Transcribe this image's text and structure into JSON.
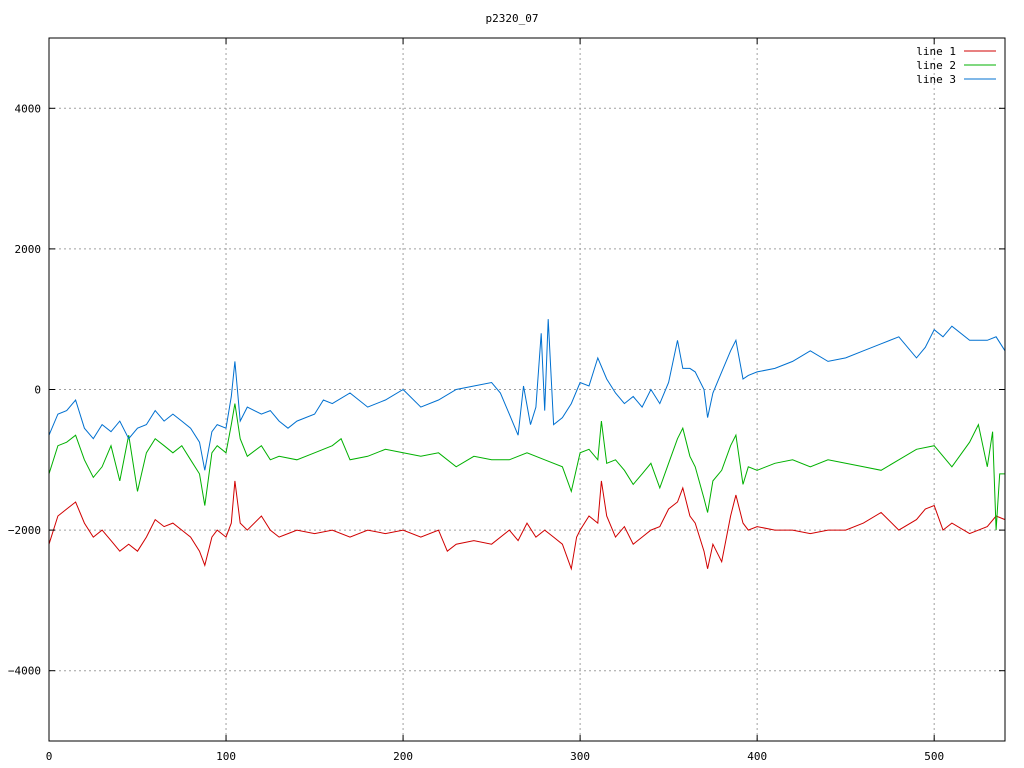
{
  "chart_data": {
    "type": "line",
    "title": "p2320_07",
    "xlabel": "",
    "ylabel": "",
    "xlim": [
      0,
      540
    ],
    "ylim": [
      -5000,
      5000
    ],
    "xticks": [
      0,
      100,
      200,
      300,
      400,
      500
    ],
    "yticks": [
      -4000,
      -2000,
      0,
      2000,
      4000
    ],
    "grid": true,
    "legend_position": "top-right",
    "series": [
      {
        "name": "line 1",
        "color": "#d00000",
        "x": [
          0,
          5,
          10,
          15,
          20,
          25,
          30,
          35,
          40,
          45,
          50,
          55,
          60,
          65,
          70,
          75,
          80,
          85,
          88,
          92,
          95,
          100,
          103,
          105,
          108,
          112,
          120,
          125,
          130,
          135,
          140,
          150,
          160,
          170,
          180,
          190,
          200,
          210,
          220,
          225,
          230,
          240,
          250,
          260,
          265,
          270,
          275,
          280,
          285,
          290,
          295,
          298,
          300,
          305,
          310,
          312,
          315,
          320,
          325,
          330,
          335,
          340,
          345,
          350,
          355,
          358,
          362,
          365,
          370,
          372,
          375,
          380,
          385,
          388,
          392,
          395,
          400,
          410,
          420,
          430,
          440,
          450,
          460,
          470,
          480,
          490,
          495,
          500,
          505,
          510,
          520,
          530,
          535,
          540
        ],
        "values": [
          -2200,
          -1800,
          -1700,
          -1600,
          -1900,
          -2100,
          -2000,
          -2150,
          -2300,
          -2200,
          -2300,
          -2100,
          -1850,
          -1950,
          -1900,
          -2000,
          -2100,
          -2300,
          -2500,
          -2100,
          -2000,
          -2100,
          -1900,
          -1300,
          -1900,
          -2000,
          -1800,
          -2000,
          -2100,
          -2050,
          -2000,
          -2050,
          -2000,
          -2100,
          -2000,
          -2050,
          -2000,
          -2100,
          -2000,
          -2300,
          -2200,
          -2150,
          -2200,
          -2000,
          -2150,
          -1900,
          -2100,
          -2000,
          -2100,
          -2200,
          -2550,
          -2100,
          -2000,
          -1800,
          -1900,
          -1300,
          -1800,
          -2100,
          -1950,
          -2200,
          -2100,
          -2000,
          -1950,
          -1700,
          -1600,
          -1400,
          -1800,
          -1900,
          -2300,
          -2550,
          -2200,
          -2450,
          -1800,
          -1500,
          -1900,
          -2000,
          -1950,
          -2000,
          -2000,
          -2050,
          -2000,
          -2000,
          -1900,
          -1750,
          -2000,
          -1850,
          -1700,
          -1650,
          -2000,
          -1900,
          -2050,
          -1950,
          -1800,
          -1850
        ]
      },
      {
        "name": "line 2",
        "color": "#00b000",
        "x": [
          0,
          5,
          10,
          15,
          20,
          25,
          30,
          35,
          40,
          45,
          50,
          55,
          60,
          65,
          70,
          75,
          80,
          85,
          88,
          92,
          95,
          100,
          103,
          105,
          108,
          112,
          120,
          125,
          130,
          140,
          150,
          160,
          165,
          170,
          180,
          190,
          200,
          210,
          220,
          230,
          240,
          250,
          260,
          270,
          280,
          290,
          295,
          300,
          305,
          310,
          312,
          315,
          320,
          325,
          330,
          335,
          340,
          345,
          350,
          355,
          358,
          362,
          365,
          370,
          372,
          375,
          380,
          385,
          388,
          392,
          395,
          400,
          410,
          420,
          430,
          440,
          450,
          460,
          470,
          480,
          490,
          500,
          510,
          520,
          525,
          530,
          533,
          535,
          537,
          540
        ],
        "values": [
          -1200,
          -800,
          -750,
          -650,
          -1000,
          -1250,
          -1100,
          -800,
          -1300,
          -650,
          -1450,
          -900,
          -700,
          -800,
          -900,
          -800,
          -1000,
          -1200,
          -1650,
          -900,
          -800,
          -900,
          -500,
          -200,
          -700,
          -950,
          -800,
          -1000,
          -950,
          -1000,
          -900,
          -800,
          -700,
          -1000,
          -950,
          -850,
          -900,
          -950,
          -900,
          -1100,
          -950,
          -1000,
          -1000,
          -900,
          -1000,
          -1100,
          -1450,
          -900,
          -850,
          -1000,
          -450,
          -1050,
          -1000,
          -1150,
          -1350,
          -1200,
          -1050,
          -1400,
          -1050,
          -700,
          -550,
          -950,
          -1100,
          -1550,
          -1750,
          -1300,
          -1150,
          -800,
          -650,
          -1350,
          -1100,
          -1150,
          -1050,
          -1000,
          -1100,
          -1000,
          -1050,
          -1100,
          -1150,
          -1000,
          -850,
          -800,
          -1100,
          -750,
          -500,
          -1100,
          -600,
          -2000,
          -1200,
          -1200
        ]
      },
      {
        "name": "line 3",
        "color": "#0070d0",
        "x": [
          0,
          5,
          10,
          15,
          20,
          25,
          30,
          35,
          40,
          45,
          50,
          55,
          60,
          65,
          70,
          75,
          80,
          85,
          88,
          92,
          95,
          100,
          103,
          105,
          108,
          112,
          120,
          125,
          130,
          135,
          140,
          150,
          155,
          160,
          170,
          180,
          190,
          200,
          210,
          220,
          230,
          240,
          250,
          255,
          260,
          265,
          268,
          272,
          275,
          278,
          280,
          282,
          285,
          290,
          295,
          300,
          305,
          310,
          315,
          320,
          325,
          330,
          335,
          340,
          345,
          350,
          355,
          358,
          362,
          365,
          370,
          372,
          375,
          380,
          385,
          388,
          392,
          395,
          400,
          410,
          420,
          430,
          440,
          450,
          460,
          470,
          480,
          490,
          495,
          500,
          505,
          510,
          520,
          530,
          535,
          540
        ],
        "values": [
          -650,
          -350,
          -300,
          -150,
          -550,
          -700,
          -500,
          -600,
          -450,
          -700,
          -550,
          -500,
          -300,
          -450,
          -350,
          -450,
          -550,
          -750,
          -1150,
          -600,
          -500,
          -550,
          -100,
          400,
          -450,
          -250,
          -350,
          -300,
          -450,
          -550,
          -450,
          -350,
          -150,
          -200,
          -50,
          -250,
          -150,
          0,
          -250,
          -150,
          0,
          50,
          100,
          -50,
          -350,
          -650,
          50,
          -500,
          -250,
          800,
          -300,
          1000,
          -500,
          -400,
          -200,
          100,
          50,
          450,
          150,
          -50,
          -200,
          -100,
          -250,
          0,
          -200,
          100,
          700,
          300,
          300,
          250,
          0,
          -400,
          -50,
          250,
          550,
          700,
          150,
          200,
          250,
          300,
          400,
          550,
          400,
          450,
          550,
          650,
          750,
          450,
          600,
          850,
          750,
          900,
          700,
          700,
          750,
          550
        ]
      }
    ]
  }
}
